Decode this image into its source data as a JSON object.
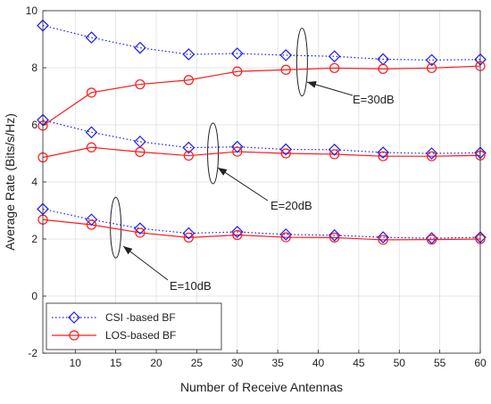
{
  "chart_data": {
    "type": "line",
    "xlabel": "Number of Receive Antennas",
    "ylabel": "Average Rate (Bits/s/Hz)",
    "xlim": [
      6,
      60
    ],
    "ylim": [
      -2,
      10
    ],
    "x": [
      6,
      12,
      18,
      24,
      30,
      36,
      42,
      48,
      54,
      60
    ],
    "xticks": [
      10,
      15,
      20,
      25,
      30,
      35,
      40,
      45,
      50,
      55,
      60
    ],
    "yticks": [
      -2,
      0,
      2,
      4,
      6,
      8,
      10
    ],
    "grid": true,
    "legend_position": "bottom-left",
    "legend": [
      "CSI -based BF",
      "LOS-based BF"
    ],
    "groups": [
      {
        "label": "E=30dB",
        "csi": [
          9.48,
          9.06,
          8.7,
          8.47,
          8.5,
          8.44,
          8.4,
          8.3,
          8.27,
          8.29
        ],
        "los": [
          5.97,
          7.13,
          7.42,
          7.57,
          7.87,
          7.93,
          7.99,
          7.96,
          7.99,
          8.06
        ]
      },
      {
        "label": "E=20dB",
        "csi": [
          6.17,
          5.74,
          5.41,
          5.2,
          5.23,
          5.14,
          5.13,
          5.03,
          5.0,
          5.02
        ],
        "los": [
          4.86,
          5.21,
          5.05,
          4.92,
          5.06,
          5.0,
          4.97,
          4.9,
          4.9,
          4.93
        ]
      },
      {
        "label": "E=10dB",
        "csi": [
          3.05,
          2.68,
          2.37,
          2.2,
          2.25,
          2.16,
          2.13,
          2.06,
          2.03,
          2.06
        ],
        "los": [
          2.68,
          2.5,
          2.22,
          2.05,
          2.14,
          2.06,
          2.05,
          1.97,
          1.98,
          2.0
        ]
      }
    ],
    "colors": {
      "csi": "#1a1aff",
      "los": "#ff1a1a"
    }
  }
}
